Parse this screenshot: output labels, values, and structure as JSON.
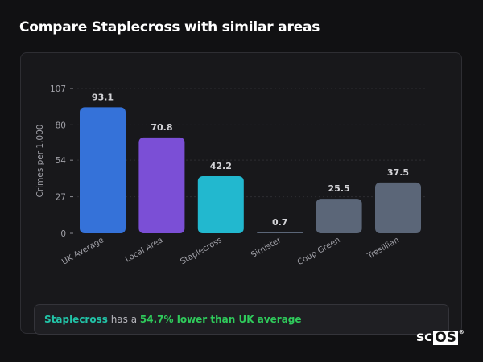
{
  "header": {
    "title": "Compare Staplecross with similar areas"
  },
  "chart_data": {
    "type": "bar",
    "title": "",
    "xlabel": "",
    "ylabel": "Crimes per 1,000",
    "ylim": [
      0,
      107
    ],
    "yticks": [
      0,
      27,
      54,
      80,
      107
    ],
    "grid": true,
    "categories": [
      "UK Average",
      "Local Area",
      "Staplecross",
      "Simister",
      "Coup Green",
      "Tresillian"
    ],
    "values": [
      93.1,
      70.8,
      42.2,
      0.7,
      25.5,
      37.5
    ],
    "colors": [
      "#3572d9",
      "#7b4fd6",
      "#22b8cf",
      "#5b6678",
      "#5b6678",
      "#5b6678"
    ]
  },
  "summary": {
    "area": "Staplecross",
    "middle": " has a ",
    "result": "54.7% lower than UK average"
  },
  "logo": {
    "text_a": "sc",
    "text_b": "OS",
    "mark": "®"
  }
}
